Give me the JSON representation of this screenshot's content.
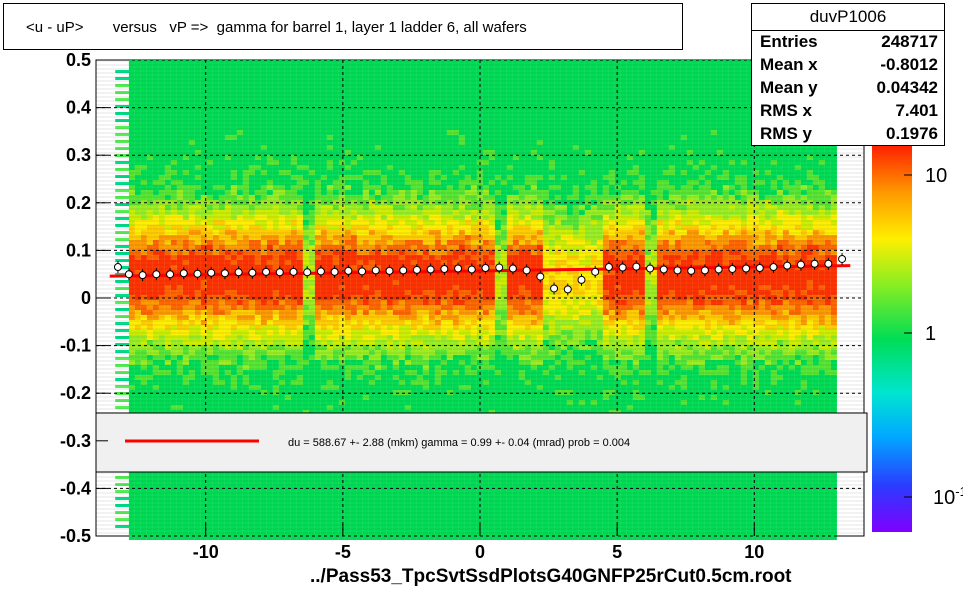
{
  "title": "<u - uP>       versus   vP =>  gamma for barrel 1, layer 1 ladder 6, all wafers",
  "stats": {
    "name": "duvP1006",
    "rows": [
      {
        "label": "Entries",
        "value": "248717"
      },
      {
        "label": "Mean x",
        "value": "-0.8012"
      },
      {
        "label": "Mean y",
        "value": "0.04342"
      },
      {
        "label": "RMS x",
        "value": "7.401"
      },
      {
        "label": "RMS y",
        "value": "0.1976"
      }
    ]
  },
  "legend": {
    "text": "du =  588.67 +-  2.88 (mkm) gamma =    0.99 +-  0.04 (mrad) prob = 0.004",
    "line_color": "#ff0000"
  },
  "filename": "../Pass53_TpcSvtSsdPlotsG40GNFP25rCut0.5cm.root",
  "colors": {
    "fit_line": "#ff0000",
    "profile": "#000000",
    "grid": "#000000"
  },
  "chart_data": {
    "type": "heatmap",
    "x_range": [
      -14,
      14
    ],
    "y_range": [
      -0.5,
      0.5
    ],
    "x_ticks": [
      "-10",
      "-5",
      "0",
      "5",
      "10"
    ],
    "x_tick_values": [
      -10,
      -5,
      0,
      5,
      10
    ],
    "y_ticks": [
      "0.5",
      "0.4",
      "0.3",
      "0.2",
      "0.1",
      "0",
      "-0.1",
      "-0.2",
      "-0.3",
      "-0.4",
      "-0.5"
    ],
    "y_tick_values": [
      0.5,
      0.4,
      0.3,
      0.2,
      0.1,
      0,
      -0.1,
      -0.2,
      -0.3,
      -0.4,
      -0.5
    ],
    "z_scale": "log",
    "z_ticks": [
      "10",
      "1",
      "10-1"
    ],
    "z_tick_values": [
      10,
      1,
      0.1
    ],
    "grid": true,
    "fit": {
      "x": [
        -13.5,
        13.5
      ],
      "y": [
        0.046,
        0.068
      ]
    },
    "profile": {
      "x": [
        -13.2,
        -12.8,
        -12.3,
        -11.8,
        -11.3,
        -10.8,
        -10.3,
        -9.8,
        -9.3,
        -8.8,
        -8.3,
        -7.8,
        -7.3,
        -6.8,
        -6.3,
        -5.8,
        -5.3,
        -4.8,
        -4.3,
        -3.8,
        -3.3,
        -2.8,
        -2.3,
        -1.8,
        -1.3,
        -0.8,
        -0.3,
        0.2,
        0.7,
        1.2,
        1.7,
        2.2,
        2.7,
        3.2,
        3.7,
        4.2,
        4.7,
        5.2,
        5.7,
        6.2,
        6.7,
        7.2,
        7.7,
        8.2,
        8.7,
        9.2,
        9.7,
        10.2,
        10.7,
        11.2,
        11.7,
        12.2,
        12.7,
        13.2
      ],
      "y": [
        0.065,
        0.05,
        0.048,
        0.05,
        0.05,
        0.052,
        0.051,
        0.053,
        0.052,
        0.054,
        0.053,
        0.055,
        0.054,
        0.055,
        0.054,
        0.056,
        0.055,
        0.057,
        0.056,
        0.058,
        0.057,
        0.058,
        0.059,
        0.06,
        0.061,
        0.062,
        0.06,
        0.063,
        0.064,
        0.062,
        0.058,
        0.045,
        0.02,
        0.018,
        0.038,
        0.055,
        0.065,
        0.064,
        0.066,
        0.062,
        0.06,
        0.058,
        0.057,
        0.058,
        0.06,
        0.061,
        0.062,
        0.063,
        0.065,
        0.068,
        0.07,
        0.072,
        0.072,
        0.082
      ]
    }
  }
}
